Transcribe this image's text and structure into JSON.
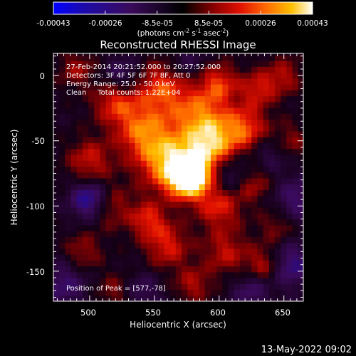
{
  "colorbar": {
    "ticks": [
      "-0.00043",
      "-0.00026",
      "-8.5e-05",
      "8.5e-05",
      "0.00026",
      "0.00043"
    ],
    "unit_parts": [
      "(photons cm",
      "-2",
      " s",
      "-1",
      " asec",
      "-2",
      ")"
    ]
  },
  "chart_data": {
    "type": "heatmap",
    "title": "Reconstructed RHESSI Image",
    "xlabel": "Heliocentric X (arcsec)",
    "ylabel": "Heliocentric Y (arcsec)",
    "xlim": [
      472,
      665
    ],
    "ylim": [
      -173,
      17
    ],
    "xticks": [
      500,
      550,
      600,
      650
    ],
    "yticks": [
      0,
      -50,
      -100,
      -150
    ],
    "zlim": [
      -0.00043,
      0.00043
    ],
    "colormap": "red-temperature (blue negative, black zero, red-orange-yellow-white positive)",
    "peak": {
      "x": 577,
      "y": -78
    },
    "annotations": [
      "27-Feb-2014 20:21:52.000 to 20:27:52.000",
      "Detectors: 3F 4F 5F 6F 7F 8F, Att 0",
      "Energy Range: 25.0 - 50.0 keV",
      "Clean     Total counts: 1.22E+04"
    ],
    "peak_label": "Position of Peak = [577,-78]"
  },
  "footer": {
    "timestamp": "13-May-2022 09:02"
  }
}
